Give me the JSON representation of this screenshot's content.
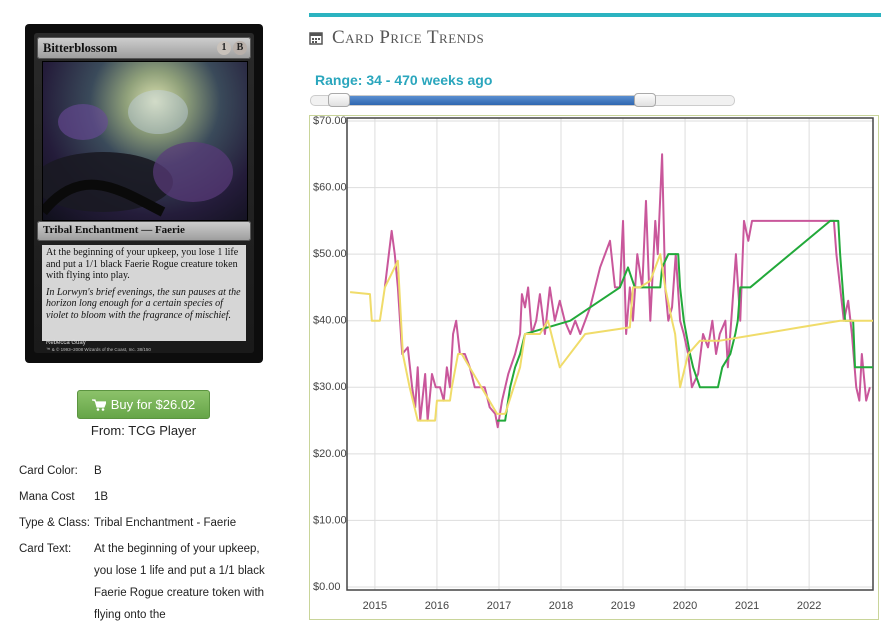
{
  "card": {
    "name": "Bitterblossom",
    "mana_symbols": [
      "1",
      "B"
    ],
    "type_line": "Tribal Enchantment — Faerie",
    "rules_text": "At the beginning of your upkeep, you lose 1 life and put a 1/1 black Faerie Rogue creature token with flying into play.",
    "flavor_text": "In Lorwyn's brief evenings, the sun pauses at the horizon long enough for a certain species of violet to bloom with the fragrance of mischief.",
    "artist": "Rebecca Guay",
    "copyright": "™ & © 1993–2008 Wizards of the Coast, Inc. 38/150"
  },
  "purchase": {
    "button": "Buy for $26.02",
    "source": "From: TCG Player"
  },
  "details": [
    {
      "label": "Card Color:",
      "value": "B"
    },
    {
      "label": "Mana Cost",
      "value": "1B"
    },
    {
      "label": "Type & Class:",
      "value": "Tribal Enchantment - Faerie"
    },
    {
      "label": "Card Text:",
      "value": "At the beginning of your upkeep, you lose 1 life and put a 1/1 black Faerie Rogue creature token with flying onto the"
    }
  ],
  "section_title": "Card Price Trends",
  "range_label": "Range: 34 - 470 weeks ago",
  "chart_data": {
    "type": "line",
    "xlim": [
      2014.55,
      2023.03
    ],
    "xticks": [
      2015,
      2016,
      2017,
      2018,
      2019,
      2020,
      2021,
      2022
    ],
    "ylim": [
      0,
      70
    ],
    "yticks": [
      {
        "value": 0,
        "label": "$0.00"
      },
      {
        "value": 10,
        "label": "$10.00"
      },
      {
        "value": 20,
        "label": "$20.00"
      },
      {
        "value": 30,
        "label": "$30.00"
      },
      {
        "value": 40,
        "label": "$40.00"
      },
      {
        "value": 50,
        "label": "$50.00"
      },
      {
        "value": 60,
        "label": "$60.00"
      },
      {
        "value": 70,
        "label": "$70.00"
      }
    ],
    "grid": true,
    "series": [
      {
        "color": "#c9579b",
        "x": [
          2015.16,
          2015.27,
          2015.32,
          2015.37,
          2015.44,
          2015.53,
          2015.6,
          2015.65,
          2015.69,
          2015.73,
          2015.81,
          2015.85,
          2015.92,
          2015.98,
          2016.05,
          2016.11,
          2016.16,
          2016.21,
          2016.26,
          2016.31,
          2016.37,
          2016.45,
          2016.53,
          2016.61,
          2016.69,
          2016.77,
          2016.85,
          2016.94,
          2016.98,
          2017.05,
          2017.15,
          2017.26,
          2017.34,
          2017.37,
          2017.42,
          2017.47,
          2017.53,
          2017.6,
          2017.66,
          2017.74,
          2017.82,
          2017.9,
          2017.98,
          2018.06,
          2018.15,
          2018.23,
          2018.31,
          2018.47,
          2018.63,
          2018.79,
          2018.87,
          2018.95,
          2019.0,
          2019.05,
          2019.11,
          2019.16,
          2019.23,
          2019.31,
          2019.37,
          2019.44,
          2019.52,
          2019.56,
          2019.63,
          2019.68,
          2019.73,
          2019.79,
          2019.85,
          2019.92,
          2019.98,
          2020.05,
          2020.11,
          2020.21,
          2020.29,
          2020.37,
          2020.44,
          2020.5,
          2020.56,
          2020.65,
          2020.69,
          2020.76,
          2020.82,
          2020.89,
          2020.95,
          2021.02,
          2021.08,
          2021.69,
          2022.4,
          2022.44,
          2022.5,
          2022.56,
          2022.63,
          2022.69,
          2022.76,
          2022.81,
          2022.85,
          2022.92,
          2022.98
        ],
        "values": [
          45,
          53.5,
          50,
          45,
          35,
          36,
          30,
          27,
          33,
          25,
          32,
          25,
          32,
          30,
          30,
          28,
          33,
          30,
          38,
          40,
          35,
          35,
          33,
          30,
          30,
          30,
          27,
          26,
          24,
          28,
          32,
          35,
          38,
          44,
          42,
          45,
          38,
          40,
          44,
          38,
          45,
          40,
          43,
          40,
          38,
          40,
          38,
          42,
          48,
          52,
          45,
          45,
          55,
          38,
          45,
          40,
          50,
          45,
          58,
          40,
          55,
          50,
          65,
          45,
          40,
          42,
          50,
          40,
          38,
          35,
          30,
          32,
          38,
          36,
          40,
          35,
          38,
          40,
          33,
          42,
          50,
          40,
          55,
          52,
          55,
          55,
          55,
          50,
          45,
          40,
          43,
          38,
          30,
          28,
          35,
          28,
          30
        ]
      },
      {
        "color": "#22a93a",
        "x": [
          2016.97,
          2017.1,
          2017.18,
          2017.26,
          2017.34,
          2017.42,
          2018.15,
          2018.95,
          2019.08,
          2019.19,
          2019.6,
          2019.63,
          2019.73,
          2019.89,
          2019.92,
          2019.98,
          2020.08,
          2020.13,
          2020.24,
          2020.53,
          2020.6,
          2020.73,
          2020.81,
          2020.85,
          2020.89,
          2021.05,
          2022.34,
          2022.47,
          2022.5,
          2022.58,
          2022.71,
          2022.74,
          2023.03
        ],
        "values": [
          25,
          25,
          30,
          33,
          35,
          38,
          40,
          45,
          48,
          45,
          45,
          48,
          50,
          50,
          45,
          40,
          35,
          33,
          30,
          30,
          33,
          35,
          38,
          40,
          45,
          45,
          55,
          55,
          50,
          40,
          40,
          33,
          33
        ]
      },
      {
        "color": "#f0dc6a",
        "x": [
          2014.6,
          2014.92,
          2014.95,
          2015.08,
          2015.16,
          2015.37,
          2015.45,
          2015.56,
          2015.69,
          2015.97,
          2016.0,
          2016.21,
          2016.24,
          2016.34,
          2016.4,
          2016.97,
          2017.1,
          2017.34,
          2017.42,
          2017.66,
          2017.79,
          2017.98,
          2018.39,
          2019.11,
          2019.16,
          2019.27,
          2019.44,
          2019.6,
          2019.68,
          2019.79,
          2019.84,
          2019.92,
          2020.05,
          2020.24,
          2020.56,
          2021.21,
          2021.85,
          2022.5,
          2023.03
        ],
        "values": [
          44.3,
          44,
          40,
          40,
          45,
          49,
          35,
          30,
          25,
          25,
          28,
          28,
          30,
          35,
          35,
          26,
          26,
          33,
          38,
          38,
          40,
          33,
          38,
          39,
          45,
          45,
          46,
          50,
          45,
          40,
          38,
          30,
          35,
          37,
          37,
          38,
          39,
          40,
          40
        ]
      }
    ]
  }
}
